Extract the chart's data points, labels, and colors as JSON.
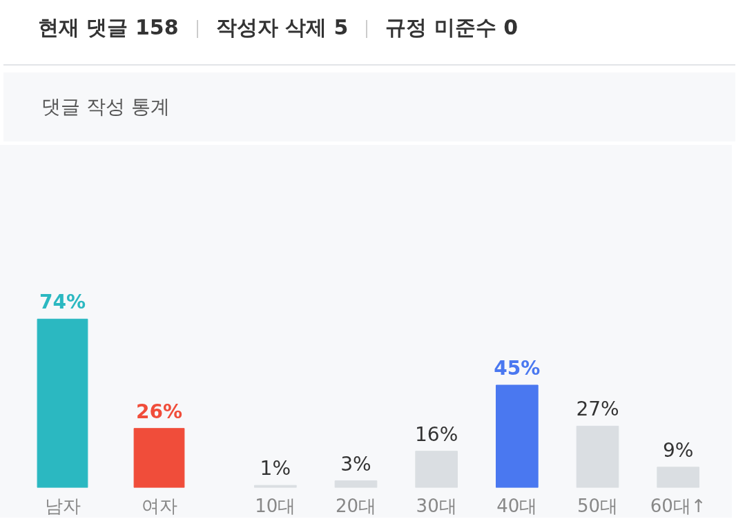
{
  "chart_data": [
    {
      "type": "other",
      "title": "댓글 작성 통계",
      "annotations": [
        "현재 댓글 158",
        "작성자 삭제 5",
        "규정 미준수 0"
      ]
    },
    {
      "type": "bar",
      "categories": [
        "남자",
        "여자"
      ],
      "values": [
        74,
        26
      ],
      "value_labels": [
        "74%",
        "26%"
      ],
      "color": "#dadee2",
      "colors": [
        "#2bb8c1",
        "#f04d3a"
      ],
      "tick_labels": "x"
    },
    {
      "type": "bar",
      "categories": [
        "10대",
        "20대",
        "30대",
        "40대",
        "50대",
        "60대↑"
      ],
      "values": [
        1,
        3,
        16,
        45,
        27,
        9
      ],
      "value_labels": [
        "1%",
        "3%",
        "16%",
        "45%",
        "27%",
        "9%"
      ],
      "color": "#dadee2",
      "colors": [
        "#dadee2",
        "#dadee2",
        "#dadee2",
        "#4a78f0",
        "#dadee2",
        "#dadee2"
      ],
      "tick_labels": "x"
    }
  ]
}
